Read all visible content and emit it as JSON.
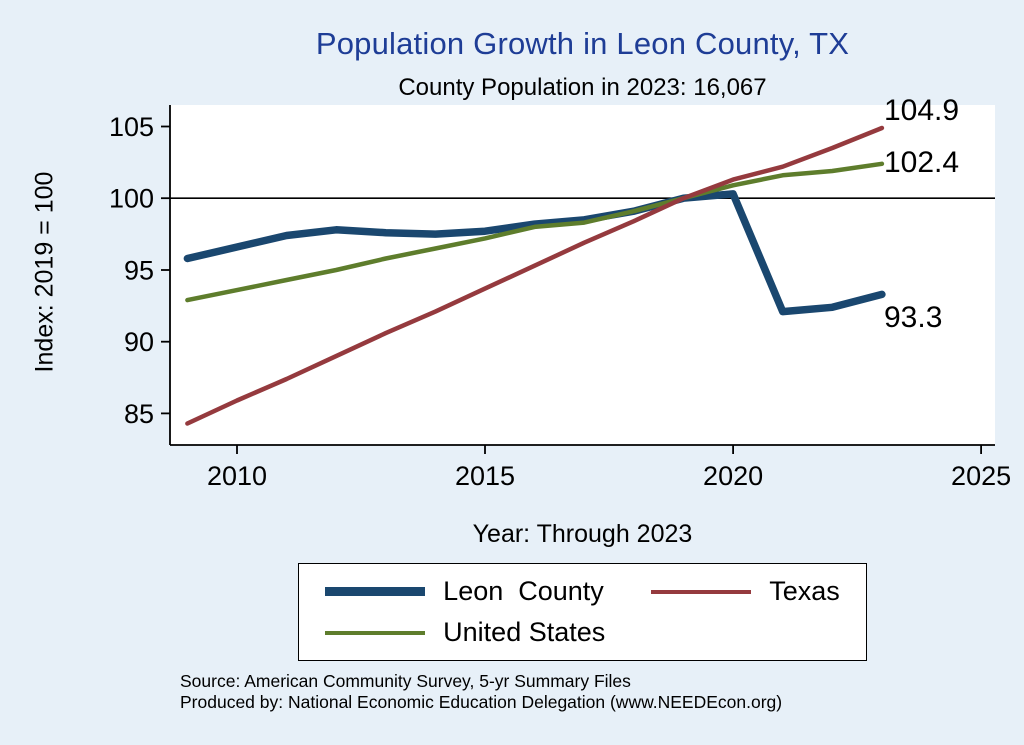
{
  "title": "Population Growth in Leon County, TX",
  "subtitle": "County Population in 2023: 16,067",
  "ylabel": "Index: 2019 = 100",
  "xlabel": "Year: Through 2023",
  "source_line1": "Source: American Community Survey, 5-yr Summary Files",
  "source_line2": "Produced by: National Economic Education Delegation (www.NEEDEcon.org)",
  "colors": {
    "background": "#e7f0f8",
    "title": "#1e3d96",
    "plot_background": "#ffffff",
    "reference_line": "#000000"
  },
  "chart_data": {
    "type": "line",
    "title": "Population Growth in Leon County, TX",
    "subtitle": "County Population in 2023: 16,067",
    "xlabel": "Year: Through 2023",
    "ylabel": "Index: 2019 = 100",
    "x": [
      2009,
      2010,
      2011,
      2012,
      2013,
      2014,
      2015,
      2016,
      2017,
      2018,
      2019,
      2020,
      2021,
      2022,
      2023
    ],
    "series": [
      {
        "name": "Leon County",
        "legend_label": "Leon  County",
        "color": "#1a476f",
        "width": 7.5,
        "values": [
          95.8,
          96.6,
          97.4,
          97.8,
          97.6,
          97.5,
          97.7,
          98.2,
          98.5,
          99.1,
          100.0,
          100.3,
          92.1,
          92.4,
          93.3
        ],
        "end_label": "93.3"
      },
      {
        "name": "United States",
        "legend_label": "United States",
        "color": "#5e7d2c",
        "width": 4.5,
        "values": [
          92.9,
          93.6,
          94.3,
          95.0,
          95.8,
          96.5,
          97.2,
          98.0,
          98.3,
          99.1,
          100.0,
          100.9,
          101.6,
          101.9,
          102.4
        ],
        "end_label": "102.4"
      },
      {
        "name": "Texas",
        "legend_label": "Texas",
        "color": "#953a3e",
        "width": 4.5,
        "values": [
          84.3,
          85.9,
          87.4,
          89.0,
          90.6,
          92.1,
          93.7,
          95.3,
          96.9,
          98.4,
          100.0,
          101.3,
          102.2,
          103.5,
          104.9
        ],
        "end_label": "104.9"
      }
    ],
    "x_ticks": [
      2010,
      2015,
      2020,
      2025
    ],
    "y_ticks": [
      85,
      90,
      95,
      100,
      105
    ],
    "x_domain": [
      2008.65,
      2025.28
    ],
    "y_domain": [
      82.8,
      106.5
    ],
    "ref_line": 100,
    "grid": false,
    "legend_position": "bottom"
  }
}
